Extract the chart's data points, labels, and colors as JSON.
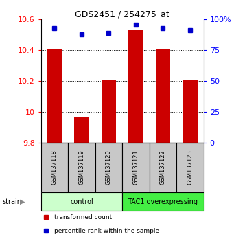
{
  "title": "GDS2451 / 254275_at",
  "samples": [
    "GSM137118",
    "GSM137119",
    "GSM137120",
    "GSM137121",
    "GSM137122",
    "GSM137123"
  ],
  "bar_values": [
    10.41,
    9.97,
    10.21,
    10.53,
    10.41,
    10.21
  ],
  "bar_bottom": 9.8,
  "percentile_values": [
    93,
    88,
    89,
    96,
    93,
    91
  ],
  "ylim_left": [
    9.8,
    10.6
  ],
  "ylim_right": [
    0,
    100
  ],
  "yticks_left": [
    9.8,
    10.0,
    10.2,
    10.4,
    10.6
  ],
  "ytick_labels_left": [
    "9.8",
    "10",
    "10.2",
    "10.4",
    "10.6"
  ],
  "yticks_right": [
    0,
    25,
    50,
    75,
    100
  ],
  "ytick_labels_right": [
    "0",
    "25",
    "50",
    "75",
    "100%"
  ],
  "bar_color": "#cc0000",
  "dot_color": "#0000cc",
  "groups": [
    {
      "label": "control",
      "indices": [
        0,
        1,
        2
      ],
      "color": "#ccffcc"
    },
    {
      "label": "TAC1 overexpressing",
      "indices": [
        3,
        4,
        5
      ],
      "color": "#44ee44"
    }
  ],
  "legend_items": [
    {
      "color": "#cc0000",
      "label": "transformed count"
    },
    {
      "color": "#0000cc",
      "label": "percentile rank within the sample"
    }
  ],
  "xlabel_area_color": "#c8c8c8",
  "grid_yticks": [
    10.0,
    10.2,
    10.4
  ]
}
